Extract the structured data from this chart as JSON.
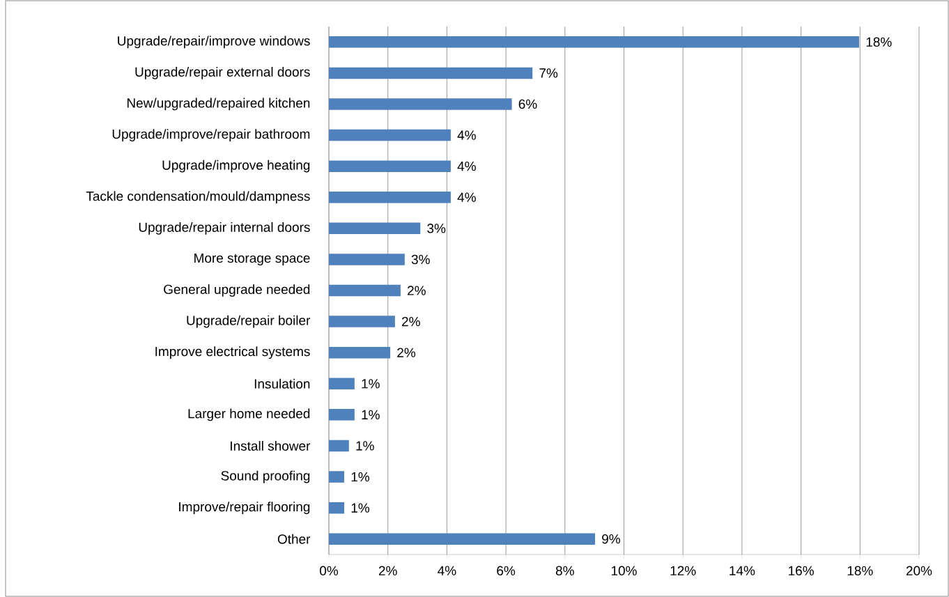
{
  "chart_data": {
    "type": "bar",
    "orientation": "horizontal",
    "categories": [
      "Upgrade/repair/improve windows",
      "Upgrade/repair external doors",
      "New/upgraded/repaired kitchen",
      "Upgrade/improve/repair bathroom",
      "Upgrade/improve heating",
      "Tackle condensation/mould/dampness",
      "Upgrade/repair internal doors",
      "More storage space",
      "General upgrade needed",
      "Upgrade/repair boiler",
      "Improve electrical systems",
      "Insulation",
      "Larger home needed",
      "Install shower",
      "Sound proofing",
      "Improve/repair flooring",
      "Other"
    ],
    "values": [
      17.97,
      6.9,
      6.2,
      4.13,
      4.13,
      4.13,
      3.1,
      2.57,
      2.43,
      2.24,
      2.08,
      0.87,
      0.87,
      0.68,
      0.52,
      0.52,
      9.02
    ],
    "value_labels": [
      "18%",
      "7%",
      "6%",
      "4%",
      "4%",
      "4%",
      "3%",
      "3%",
      "2%",
      "2%",
      "2%",
      "1%",
      "1%",
      "1%",
      "1%",
      "1%",
      "9%"
    ],
    "color": "#4f81bd",
    "xlim": [
      0,
      20
    ],
    "xticks": [
      {
        "value": 0,
        "label": "0%"
      },
      {
        "value": 2,
        "label": "2%"
      },
      {
        "value": 4,
        "label": "4%"
      },
      {
        "value": 6,
        "label": "6%"
      },
      {
        "value": 8,
        "label": "8%"
      },
      {
        "value": 10,
        "label": "10%"
      },
      {
        "value": 12,
        "label": "12%"
      },
      {
        "value": 14,
        "label": "14%"
      },
      {
        "value": 16,
        "label": "16%"
      },
      {
        "value": 18,
        "label": "18%"
      },
      {
        "value": 20,
        "label": "20%"
      }
    ],
    "grid": "x"
  }
}
